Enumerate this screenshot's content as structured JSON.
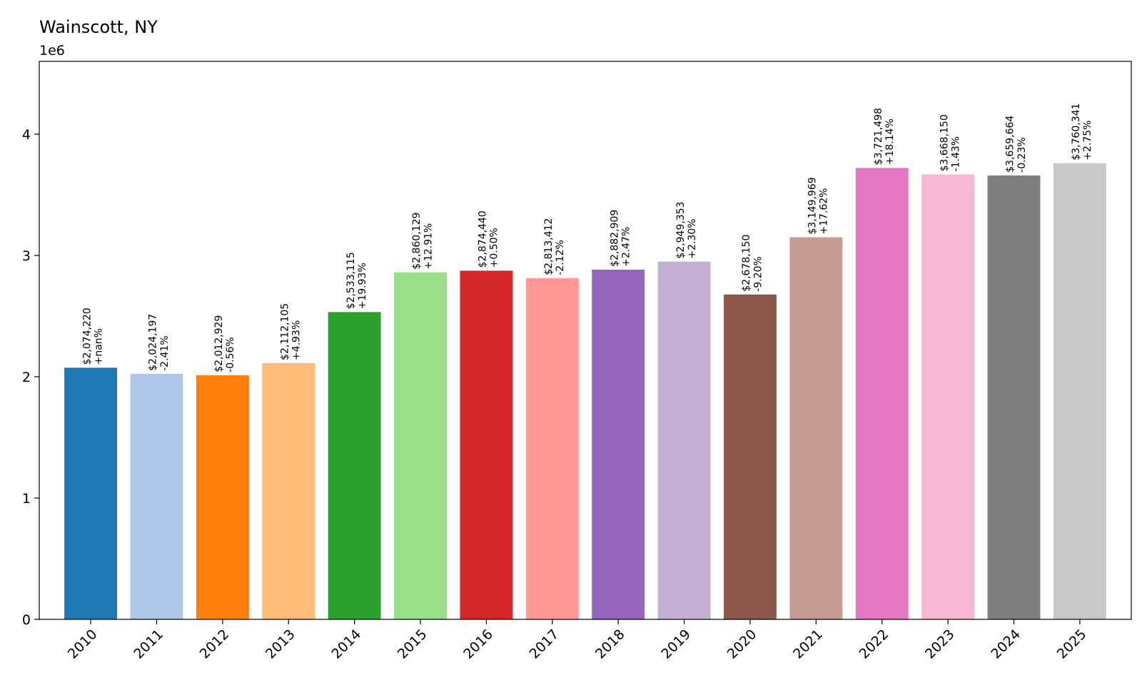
{
  "chart_data": {
    "type": "bar",
    "title": "Wainscott, NY",
    "offset_label": "1e6",
    "xlabel": "",
    "ylabel": "",
    "ylim": [
      0,
      4600000
    ],
    "yticks": [
      0,
      1000000,
      2000000,
      3000000,
      4000000
    ],
    "ytick_labels": [
      "0",
      "1",
      "2",
      "3",
      "4"
    ],
    "grid": false,
    "legend": "none",
    "categories": [
      "2010",
      "2011",
      "2012",
      "2013",
      "2014",
      "2015",
      "2016",
      "2017",
      "2018",
      "2019",
      "2020",
      "2021",
      "2022",
      "2023",
      "2024",
      "2025"
    ],
    "values": [
      2074220,
      2024197,
      2012929,
      2112105,
      2533115,
      2860129,
      2874440,
      2813412,
      2882909,
      2949353,
      2678150,
      3149969,
      3721498,
      3668150,
      3659664,
      3760341
    ],
    "value_labels": [
      "$2,074,220",
      "$2,024,197",
      "$2,012,929",
      "$2,112,105",
      "$2,533,115",
      "$2,860,129",
      "$2,874,440",
      "$2,813,412",
      "$2,882,909",
      "$2,949,353",
      "$2,678,150",
      "$3,149,969",
      "$3,721,498",
      "$3,668,150",
      "$3,659,664",
      "$3,760,341"
    ],
    "change_labels": [
      "+nan%",
      "-2.41%",
      "-0.56%",
      "+4.93%",
      "+19.93%",
      "+12.91%",
      "+0.50%",
      "-2.12%",
      "+2.47%",
      "+2.30%",
      "-9.20%",
      "+17.62%",
      "+18.14%",
      "-1.43%",
      "-0.23%",
      "+2.75%"
    ],
    "colors": [
      "#1f77b4",
      "#aec7e8",
      "#ff7f0e",
      "#ffbb78",
      "#2ca02c",
      "#98df8a",
      "#d62728",
      "#ff9896",
      "#9467bd",
      "#c5b0d5",
      "#8c564b",
      "#c49c94",
      "#e377c2",
      "#f7b6d2",
      "#7f7f7f",
      "#c7c7c7"
    ]
  }
}
